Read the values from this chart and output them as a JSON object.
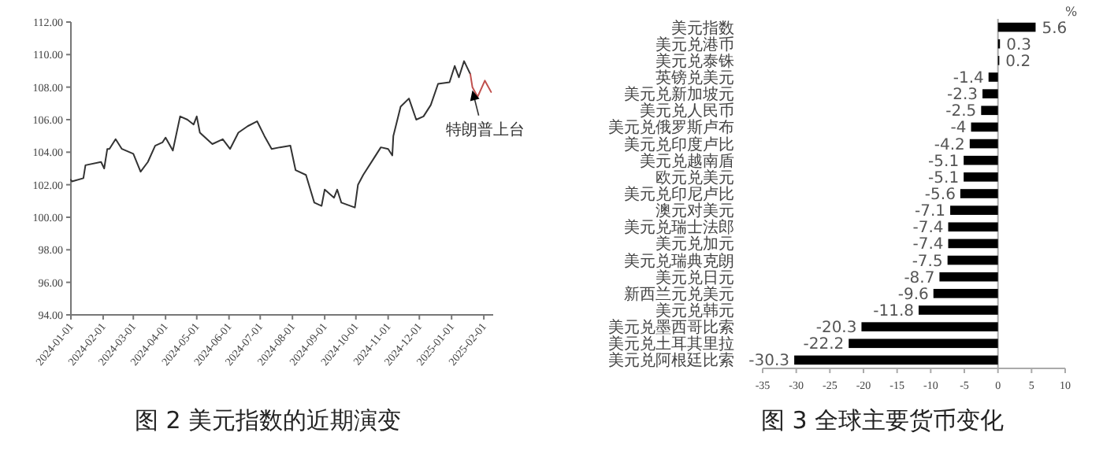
{
  "chart_data": [
    {
      "type": "line",
      "title": "图 2  美元指数的近期演变",
      "series": [
        {
          "color": "#333333",
          "x": [
            "2024-01-01",
            "2024-01-02",
            "2024-01-13",
            "2024-01-15",
            "2024-01-30",
            "2024-02-02",
            "2024-02-05",
            "2024-02-07",
            "2024-02-13",
            "2024-02-19",
            "2024-03-01",
            "2024-03-08",
            "2024-03-15",
            "2024-03-22",
            "2024-03-29",
            "2024-04-01",
            "2024-04-08",
            "2024-04-15",
            "2024-04-22",
            "2024-04-28",
            "2024-05-01",
            "2024-05-04",
            "2024-05-16",
            "2024-05-26",
            "2024-06-02",
            "2024-06-10",
            "2024-06-19",
            "2024-06-28",
            "2024-07-05",
            "2024-07-12",
            "2024-07-20",
            "2024-07-30",
            "2024-08-04",
            "2024-08-14",
            "2024-08-22",
            "2024-08-29",
            "2024-09-01",
            "2024-09-10",
            "2024-09-13",
            "2024-09-17",
            "2024-09-30",
            "2024-10-03",
            "2024-10-08",
            "2024-10-18",
            "2024-10-25",
            "2024-11-01",
            "2024-11-05",
            "2024-11-06",
            "2024-11-13",
            "2024-11-21",
            "2024-11-28",
            "2024-12-05",
            "2024-12-12",
            "2024-12-19",
            "2024-12-30",
            "2025-01-04",
            "2025-01-08",
            "2025-01-13",
            "2025-01-19"
          ],
          "values": [
            102.3,
            102.2,
            102.4,
            103.2,
            103.4,
            103.0,
            104.2,
            104.2,
            104.8,
            104.2,
            103.9,
            102.8,
            103.4,
            104.4,
            104.6,
            104.9,
            104.1,
            106.2,
            106.0,
            105.7,
            106.2,
            105.2,
            104.5,
            104.8,
            104.2,
            105.2,
            105.6,
            105.9,
            105.0,
            104.2,
            104.3,
            104.4,
            102.9,
            102.6,
            100.9,
            100.7,
            101.7,
            101.2,
            101.7,
            100.9,
            100.6,
            102.0,
            102.6,
            103.6,
            104.3,
            104.2,
            103.8,
            105.0,
            106.8,
            107.3,
            106.0,
            106.2,
            106.9,
            108.2,
            108.3,
            109.3,
            108.6,
            109.6,
            108.8
          ]
        },
        {
          "color": "#c0504d",
          "x": [
            "2025-01-19",
            "2025-01-21",
            "2025-01-26",
            "2025-02-02",
            "2025-02-08"
          ],
          "values": [
            108.8,
            108.0,
            107.4,
            108.4,
            107.7
          ]
        }
      ],
      "xlim": [
        "2024-01-01",
        "2025-02-10"
      ],
      "xticks": [
        "2024-01-01",
        "2024-02-01",
        "2024-03-01",
        "2024-04-01",
        "2024-05-01",
        "2024-06-01",
        "2024-07-01",
        "2024-08-01",
        "2024-09-01",
        "2024-10-01",
        "2024-11-01",
        "2024-12-01",
        "2025-01-01",
        "2025-02-01"
      ],
      "ylim": [
        94,
        112
      ],
      "yticks": [
        {
          "value": 94,
          "label": "94.00"
        },
        {
          "value": 96,
          "label": "96.00"
        },
        {
          "value": 98,
          "label": "98.00"
        },
        {
          "value": 100,
          "label": "100.00"
        },
        {
          "value": 102,
          "label": "102.00"
        },
        {
          "value": 104,
          "label": "104.00"
        },
        {
          "value": 106,
          "label": "106.00"
        },
        {
          "value": 108,
          "label": "108.00"
        },
        {
          "value": 110,
          "label": "110.00"
        },
        {
          "value": 112,
          "label": "112.00"
        }
      ],
      "annotations": [
        {
          "text": "特朗普上台",
          "x": "2025-01-21",
          "y": 107.8
        }
      ]
    },
    {
      "type": "bar",
      "orientation": "horizontal",
      "title": "图 3  全球主要货币变化",
      "xlabel": "%",
      "categories": [
        "美元指数",
        "美元兑港币",
        "美元兑泰铢",
        "英镑兑美元",
        "美元兑新加坡元",
        "美元兑人民币",
        "美元兑俄罗斯卢布",
        "美元兑印度卢比",
        "美元兑越南盾",
        "欧元兑美元",
        "美元兑印尼卢比",
        "澳元对美元",
        "美元兑瑞士法郎",
        "美元兑加元",
        "美元兑瑞典克朗",
        "美元兑日元",
        "新西兰元兑美元",
        "美元兑韩元",
        "美元兑墨西哥比索",
        "美元兑土耳其里拉",
        "美元兑阿根廷比索"
      ],
      "values": [
        5.6,
        0.3,
        0.2,
        -1.4,
        -2.3,
        -2.5,
        -4,
        -4.2,
        -5.1,
        -5.1,
        -5.6,
        -7.1,
        -7.4,
        -7.4,
        -7.5,
        -8.7,
        -9.6,
        -11.8,
        -20.3,
        -22.2,
        -30.3
      ],
      "color": "#000000",
      "data_labels": true,
      "xlim": [
        -35,
        10
      ],
      "xticks": [
        -35,
        -30,
        -25,
        -20,
        -15,
        -10,
        -5,
        0,
        5,
        10
      ]
    }
  ]
}
